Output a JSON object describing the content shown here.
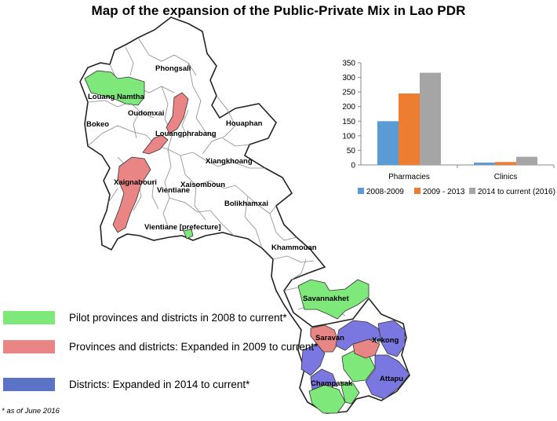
{
  "title": "Map of the expansion of the Public-Private Mix in Lao PDR",
  "colors": {
    "green": "#7ee87a",
    "red": "#ea8585",
    "blue": "#7a78e0",
    "white": "#ffffff",
    "border": "#333333"
  },
  "map": {
    "provinces": [
      "Phongsali",
      "Louang Namtha",
      "Oudomxai",
      "Bokeo",
      "Louangphrabang",
      "Houaphan",
      "Xiangkhoang",
      "Xaignabouri",
      "Vientiane",
      "Xaisomboun",
      "Bolikhamxai",
      "Vientiane [prefecture]",
      "Khammouan",
      "Savannakhet",
      "Saravan",
      "Xekong",
      "Champasak",
      "Attapu"
    ]
  },
  "chart_data": {
    "type": "bar",
    "categories": [
      "Pharmacies",
      "Clinics"
    ],
    "series": [
      {
        "name": "2008-2009",
        "values": [
          150,
          8
        ],
        "color": "#5b9bd5"
      },
      {
        "name": "2009 - 2013",
        "values": [
          245,
          10
        ],
        "color": "#ed7d31"
      },
      {
        "name": "2014 to current (2016)",
        "values": [
          316,
          28
        ],
        "color": "#a5a5a5"
      }
    ],
    "yticks": [
      "0",
      "50",
      "100",
      "150",
      "200",
      "250",
      "300",
      "350"
    ],
    "ylim": [
      0,
      350
    ],
    "legend_position": "bottom",
    "grid": false
  },
  "legend": [
    {
      "label": "Pilot provinces  and districts in 2008 to current*",
      "color": "#7ee87a"
    },
    {
      "label": "Provinces and districts: Expanded in 2009 to current*",
      "color": "#ea8585"
    },
    {
      "label": "Districts: Expanded in 2014  to current*",
      "color": "#7a78e0"
    }
  ],
  "footnote": "* as of June 2016"
}
